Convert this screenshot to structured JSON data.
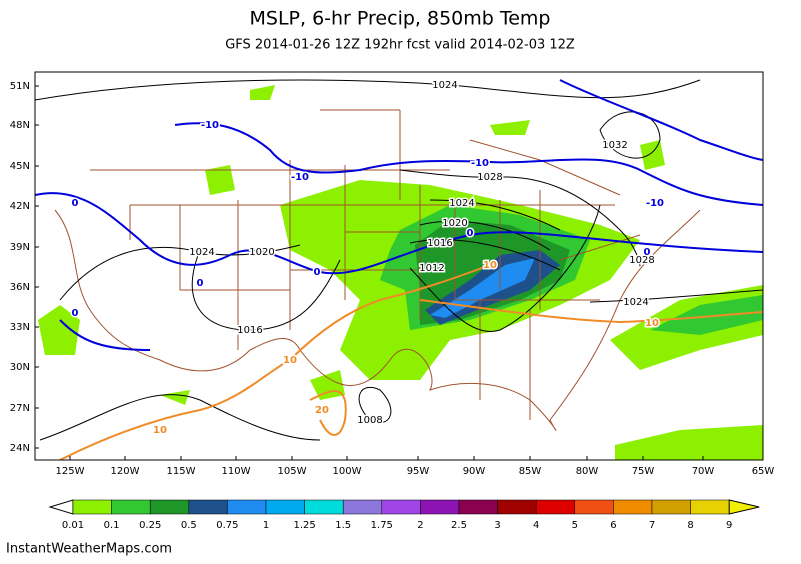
{
  "header": {
    "title": "MSLP, 6-hr Precip, 850mb Temp",
    "subtitle": "GFS 2014-01-26 12Z 192hr fcst valid 2014-02-03 12Z"
  },
  "map": {
    "lat_labels": [
      "51N",
      "48N",
      "45N",
      "42N",
      "39N",
      "36N",
      "33N",
      "30N",
      "27N",
      "24N"
    ],
    "lon_labels": [
      "125W",
      "120W",
      "115W",
      "110W",
      "105W",
      "100W",
      "95W",
      "90W",
      "85W",
      "80W",
      "75W",
      "70W",
      "65W"
    ],
    "isobar_labels": [
      "1024",
      "1032",
      "1028",
      "1024",
      "1020",
      "1016",
      "1012",
      "1024",
      "1020",
      "1016",
      "1028",
      "1024",
      "1008"
    ],
    "cold_temp_labels": [
      "-10",
      "-10",
      "-10",
      "-10",
      "0",
      "0",
      "0",
      "0",
      "0",
      "0"
    ],
    "warm_temp_labels": [
      "10",
      "10",
      "10",
      "10",
      "20"
    ]
  },
  "colorbar": {
    "labels": [
      "0.01",
      "0.1",
      "0.25",
      "0.5",
      "0.75",
      "1",
      "1.25",
      "1.5",
      "1.75",
      "2",
      "2.5",
      "3",
      "4",
      "5",
      "6",
      "7",
      "8",
      "9"
    ],
    "colors": [
      "#8cf000",
      "#32c832",
      "#1e9628",
      "#1e508c",
      "#1e8cf0",
      "#00aaf0",
      "#00dcdc",
      "#8c78dc",
      "#a046e6",
      "#8c14b4",
      "#8c0050",
      "#a00000",
      "#dc0000",
      "#f05014",
      "#f08c00",
      "#d2a000",
      "#e6d200",
      "#f0f000"
    ]
  },
  "footer": "InstantWeatherMaps.com"
}
